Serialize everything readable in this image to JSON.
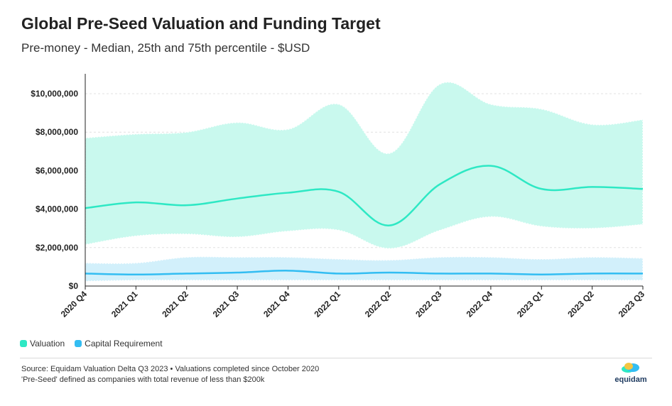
{
  "title": "Global Pre-Seed Valuation and Funding Target",
  "subtitle": "Pre-money - Median, 25th and 75th percentile - $USD",
  "legend": [
    {
      "label": "Valuation",
      "color": "#2ee8c4"
    },
    {
      "label": "Capital Requirement",
      "color": "#33bdf2"
    }
  ],
  "source_lines": [
    "Source: Equidam Valuation Delta Q3 2023 • Valuations completed since October 2020",
    "'Pre-Seed' defined as companies with total revenue of less than $200k"
  ],
  "logo_text": "equidam",
  "chart_data": {
    "type": "area",
    "categories": [
      "2020 Q4",
      "2021 Q1",
      "2021 Q2",
      "2021 Q3",
      "2021 Q4",
      "2022 Q1",
      "2022 Q2",
      "2022 Q3",
      "2022 Q4",
      "2023 Q1",
      "2023 Q2",
      "2023 Q3"
    ],
    "y_ticks": [
      "$0",
      "$2,000,000",
      "$4,000,000",
      "$6,000,000",
      "$8,000,000",
      "$10,000,000"
    ],
    "ylim": [
      0,
      10600000
    ],
    "grid": true,
    "legend_position": "bottom-left",
    "series": [
      {
        "name": "Valuation",
        "color": "#2ee8c4",
        "band_color": "#c9f9ee",
        "median": [
          4050000,
          4350000,
          4200000,
          4550000,
          4850000,
          4900000,
          3150000,
          5300000,
          6250000,
          5050000,
          5150000,
          5050000
        ],
        "p25": [
          2150000,
          2600000,
          2700000,
          2550000,
          2850000,
          2900000,
          1950000,
          2900000,
          3600000,
          3100000,
          3000000,
          3200000
        ],
        "p75": [
          7700000,
          7900000,
          8000000,
          8500000,
          8150000,
          9450000,
          6900000,
          10500000,
          9450000,
          9200000,
          8400000,
          8650000
        ]
      },
      {
        "name": "Capital Requirement",
        "color": "#33bdf2",
        "band_color": "#d2f0fb",
        "median": [
          650000,
          600000,
          650000,
          700000,
          800000,
          650000,
          700000,
          650000,
          650000,
          600000,
          650000,
          650000
        ],
        "p25": [
          250000,
          300000,
          300000,
          300000,
          300000,
          300000,
          300000,
          300000,
          300000,
          300000,
          300000,
          300000
        ],
        "p75": [
          1200000,
          1200000,
          1500000,
          1500000,
          1500000,
          1400000,
          1350000,
          1500000,
          1500000,
          1400000,
          1500000,
          1450000
        ]
      }
    ]
  }
}
